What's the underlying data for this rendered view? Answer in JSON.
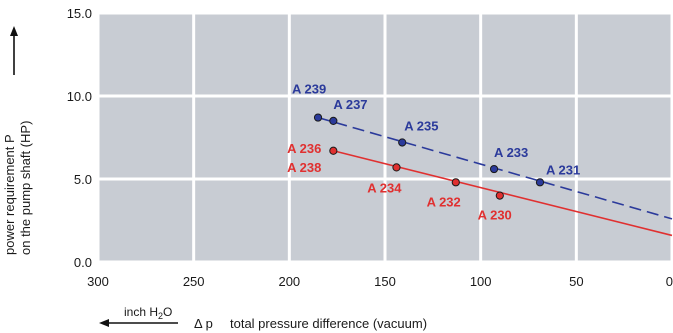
{
  "chart_data": {
    "type": "line",
    "title": "",
    "ylabel_line1": "power requirement P",
    "ylabel_line2": "on the pump shaft (HP)",
    "xlabel_symbol": "Δ p",
    "xlabel": "total pressure difference (vacuum)",
    "unit_label_main": "inch H",
    "unit_label_sub": "2",
    "unit_label_end": "O",
    "xlim": [
      300,
      0
    ],
    "ylim": [
      0,
      15
    ],
    "x_ticks": [
      300,
      250,
      200,
      150,
      100,
      50,
      0
    ],
    "x_tick_labels": [
      "300",
      "250",
      "200",
      "150",
      "100",
      "50",
      "0"
    ],
    "y_ticks": [
      0,
      5,
      10,
      15
    ],
    "y_tick_labels": [
      "0.0",
      "5.0",
      "10.0",
      "15.0"
    ],
    "grid": true,
    "background": "#c8ccd3",
    "series": [
      {
        "color": "#2b3a9b",
        "dashed": true,
        "line": [
          [
            185,
            8.7
          ],
          [
            0,
            2.6
          ]
        ],
        "points": [
          {
            "label": "A 239",
            "x": 185,
            "y": 8.7
          },
          {
            "label": "A 237",
            "x": 177,
            "y": 8.5
          },
          {
            "label": "A 235",
            "x": 141,
            "y": 7.2
          },
          {
            "label": "A 233",
            "x": 93,
            "y": 5.6
          },
          {
            "label": "A 231",
            "x": 69,
            "y": 4.8
          }
        ]
      },
      {
        "color": "#e03030",
        "dashed": false,
        "line": [
          [
            177,
            6.7
          ],
          [
            0,
            1.6
          ]
        ],
        "points": [
          {
            "label": "A 236",
            "x": 177,
            "y": 6.7
          },
          {
            "label": "A 238",
            "x": 177,
            "y": 6.7
          },
          {
            "label": "A 234",
            "x": 144,
            "y": 5.7
          },
          {
            "label": "A 232",
            "x": 113,
            "y": 4.8
          },
          {
            "label": "A 230",
            "x": 90,
            "y": 4.0
          }
        ]
      }
    ]
  }
}
